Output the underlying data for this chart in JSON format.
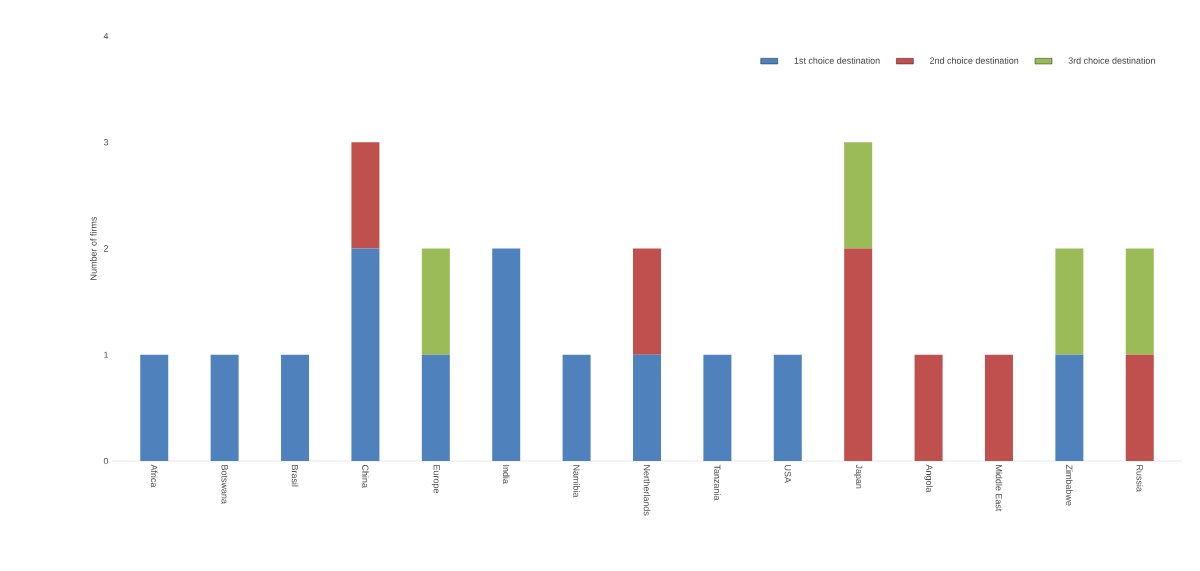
{
  "chart_data": {
    "type": "bar",
    "stacked": true,
    "ylabel": "Number of firms",
    "categories": [
      "Africa",
      "Botswana",
      "Brasil",
      "China",
      "Europe",
      "India",
      "Namibia",
      "Nertherlands",
      "Tanzania",
      "USA",
      "Japan",
      "Angola",
      "Middle East",
      "Zimbabwe",
      "Russia"
    ],
    "series": [
      {
        "name": "1st choice destination",
        "color": "#4f81bd",
        "values": [
          1,
          1,
          1,
          2,
          1,
          2,
          1,
          1,
          1,
          1,
          0,
          0,
          0,
          1,
          0
        ]
      },
      {
        "name": "2nd choice destination",
        "color": "#c0504d",
        "values": [
          0,
          0,
          0,
          1,
          0,
          0,
          0,
          1,
          0,
          0,
          2,
          1,
          1,
          0,
          1
        ]
      },
      {
        "name": "3rd choice destination",
        "color": "#9bbb59",
        "values": [
          0,
          0,
          0,
          0,
          1,
          0,
          0,
          0,
          0,
          0,
          1,
          0,
          0,
          1,
          1
        ]
      }
    ],
    "ylim": [
      0,
      4
    ],
    "yticks": [
      0,
      1,
      2,
      3,
      4
    ],
    "grid": false,
    "legend": "top right"
  }
}
